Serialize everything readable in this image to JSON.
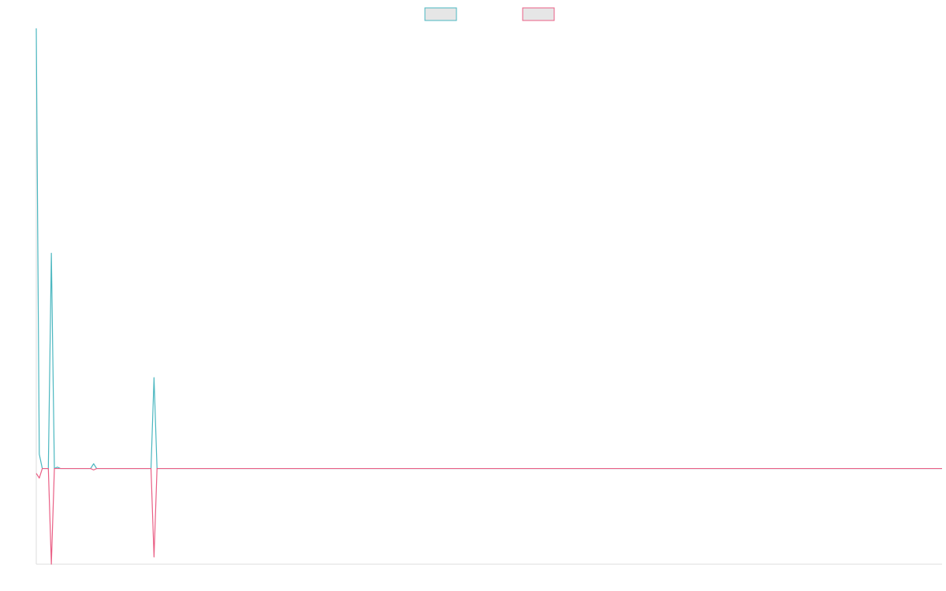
{
  "chart_data": {
    "type": "line",
    "title": "",
    "xlabel": "",
    "ylabel": "",
    "grid": false,
    "legend_position": "top-center",
    "x": [
      0,
      1,
      2,
      3,
      4,
      5,
      6,
      7,
      8,
      9,
      10,
      11,
      12,
      13,
      14,
      15,
      16,
      17,
      18,
      19,
      20,
      21,
      22,
      23,
      24,
      25,
      26,
      27,
      28,
      29,
      30,
      31,
      32,
      33,
      34,
      35,
      36,
      37,
      38,
      39,
      40,
      41,
      42,
      43,
      44,
      45,
      46,
      47,
      48,
      49,
      50,
      51,
      52,
      53,
      54,
      55,
      56,
      57,
      58,
      59,
      60,
      61,
      62,
      63,
      64,
      65,
      66,
      67,
      68,
      69,
      70,
      71,
      72,
      73,
      74,
      75,
      76,
      77,
      78,
      79,
      80,
      81,
      82,
      83,
      84,
      85,
      86,
      87,
      88,
      89,
      90,
      91,
      92,
      93,
      94,
      95,
      96,
      97,
      98,
      99,
      100,
      101,
      102,
      103,
      104,
      105,
      106,
      107,
      108,
      109,
      110,
      111,
      112,
      113,
      114,
      115,
      116,
      117,
      118,
      119,
      120,
      121,
      122,
      123,
      124,
      125,
      126,
      127,
      128,
      129,
      130,
      131,
      132,
      133,
      134,
      135,
      136,
      137,
      138,
      139,
      140,
      141,
      142,
      143,
      144,
      145,
      146,
      147,
      148,
      149,
      150,
      151,
      152,
      153,
      154,
      155,
      156,
      157,
      158,
      159,
      160,
      161,
      162,
      163,
      164,
      165,
      166,
      167,
      168,
      169,
      170,
      171,
      172,
      173,
      174,
      175,
      176,
      177,
      178,
      179,
      180,
      181,
      182,
      183,
      184,
      185,
      186,
      187,
      188,
      189,
      190,
      191,
      192,
      193,
      194,
      195,
      196,
      197,
      198,
      199,
      200,
      201,
      202,
      203,
      204,
      205,
      206,
      207,
      208,
      209,
      210,
      211,
      212,
      213,
      214,
      215,
      216,
      217,
      218,
      219,
      220,
      221,
      222,
      223,
      224,
      225,
      226,
      227,
      228,
      229,
      230,
      231,
      232,
      233,
      234,
      235,
      236,
      237,
      238,
      239,
      240,
      241,
      242,
      243,
      244,
      245,
      246,
      247,
      248,
      249,
      250,
      251,
      252,
      253,
      254,
      255,
      256,
      257,
      258,
      259,
      260,
      261,
      262,
      263,
      264,
      265,
      266,
      267,
      268,
      269,
      270,
      271,
      272,
      273,
      274,
      275,
      276,
      277,
      278,
      279,
      280,
      281,
      282,
      283,
      284,
      285,
      286,
      287,
      288,
      289,
      290,
      291,
      292,
      293,
      294,
      295,
      296,
      297,
      298,
      299,
      300
    ],
    "ylim": [
      -20,
      92
    ],
    "series": [
      {
        "color": "#4bb7c0",
        "points": [
          [
            0,
            92
          ],
          [
            1,
            3
          ],
          [
            2,
            0
          ],
          [
            3,
            0
          ],
          [
            4,
            0
          ],
          [
            5,
            45
          ],
          [
            6,
            0
          ],
          [
            7,
            0.3
          ],
          [
            8,
            0
          ],
          [
            18,
            0
          ],
          [
            19,
            1
          ],
          [
            20,
            0
          ],
          [
            38,
            0
          ],
          [
            39,
            19
          ],
          [
            40,
            0
          ],
          [
            300,
            0
          ]
        ]
      },
      {
        "color": "#ea5f85",
        "points": [
          [
            0,
            -1
          ],
          [
            1,
            -2
          ],
          [
            2,
            0
          ],
          [
            3,
            0
          ],
          [
            4,
            0
          ],
          [
            5,
            -20
          ],
          [
            6,
            0
          ],
          [
            18,
            0
          ],
          [
            19,
            -0.3
          ],
          [
            20,
            0
          ],
          [
            38,
            0
          ],
          [
            39,
            -18.5
          ],
          [
            40,
            0
          ],
          [
            300,
            0
          ]
        ]
      }
    ]
  }
}
